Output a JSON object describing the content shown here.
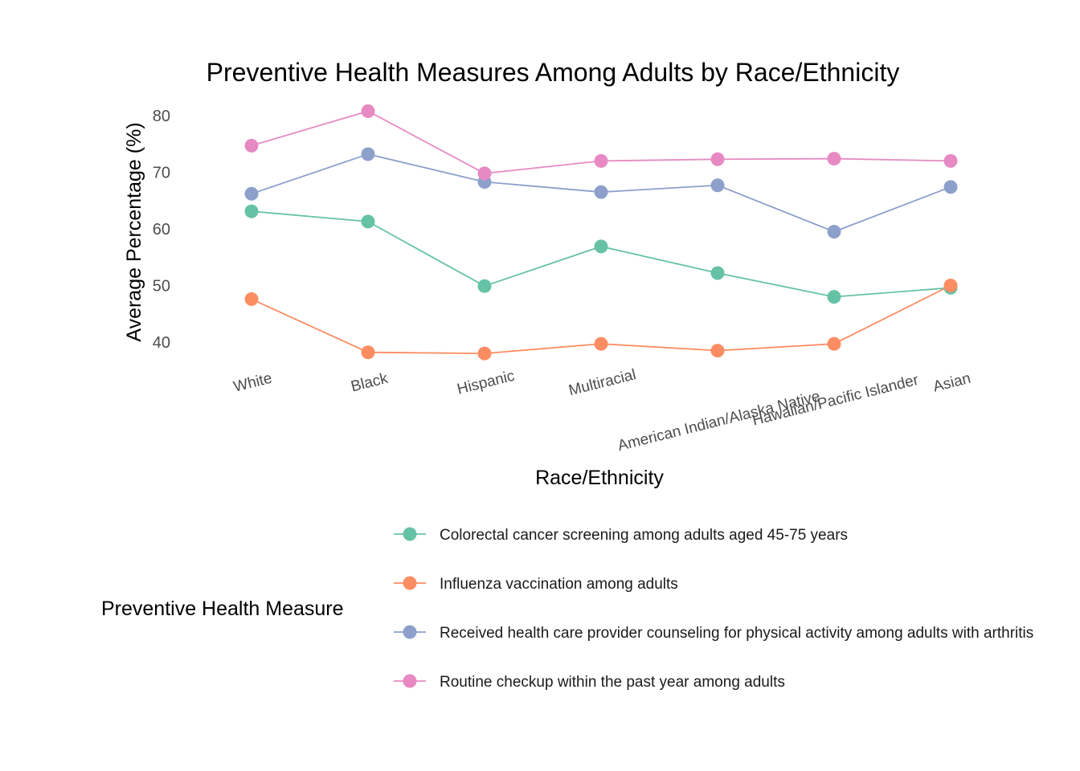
{
  "chart_data": {
    "type": "line",
    "title": "Preventive Health Measures Among Adults by Race/Ethnicity",
    "xlabel": "Race/Ethnicity",
    "ylabel": "Average Percentage (%)",
    "categories": [
      "White",
      "Black",
      "Hispanic",
      "Multiracial",
      "American Indian/Alaska Native",
      "Hawaiian/Pacific Islander",
      "Asian"
    ],
    "yticks": [
      40,
      50,
      60,
      70,
      80
    ],
    "ylim": [
      36,
      82.5
    ],
    "grid": false,
    "legend": {
      "title": "Preventive Health Measure",
      "position": "bottom"
    },
    "series": [
      {
        "name": "Colorectal cancer screening among adults aged 45-75 years",
        "color": "#66c2a5",
        "values": [
          63.1,
          61.3,
          49.9,
          56.9,
          52.2,
          48.0,
          49.6
        ]
      },
      {
        "name": "Influenza vaccination among adults",
        "color": "#fc8d62",
        "values": [
          47.6,
          38.2,
          38.0,
          39.7,
          38.5,
          39.7,
          50.0
        ]
      },
      {
        "name": "Received health care provider counseling for physical activity among adults with arthritis",
        "color": "#8da0cb",
        "values": [
          66.2,
          73.2,
          68.3,
          66.5,
          67.7,
          59.5,
          67.4
        ]
      },
      {
        "name": "Routine checkup within the past year among adults",
        "color": "#e78ac3",
        "values": [
          74.7,
          80.8,
          69.8,
          72.0,
          72.3,
          72.4,
          72.0
        ]
      }
    ]
  }
}
